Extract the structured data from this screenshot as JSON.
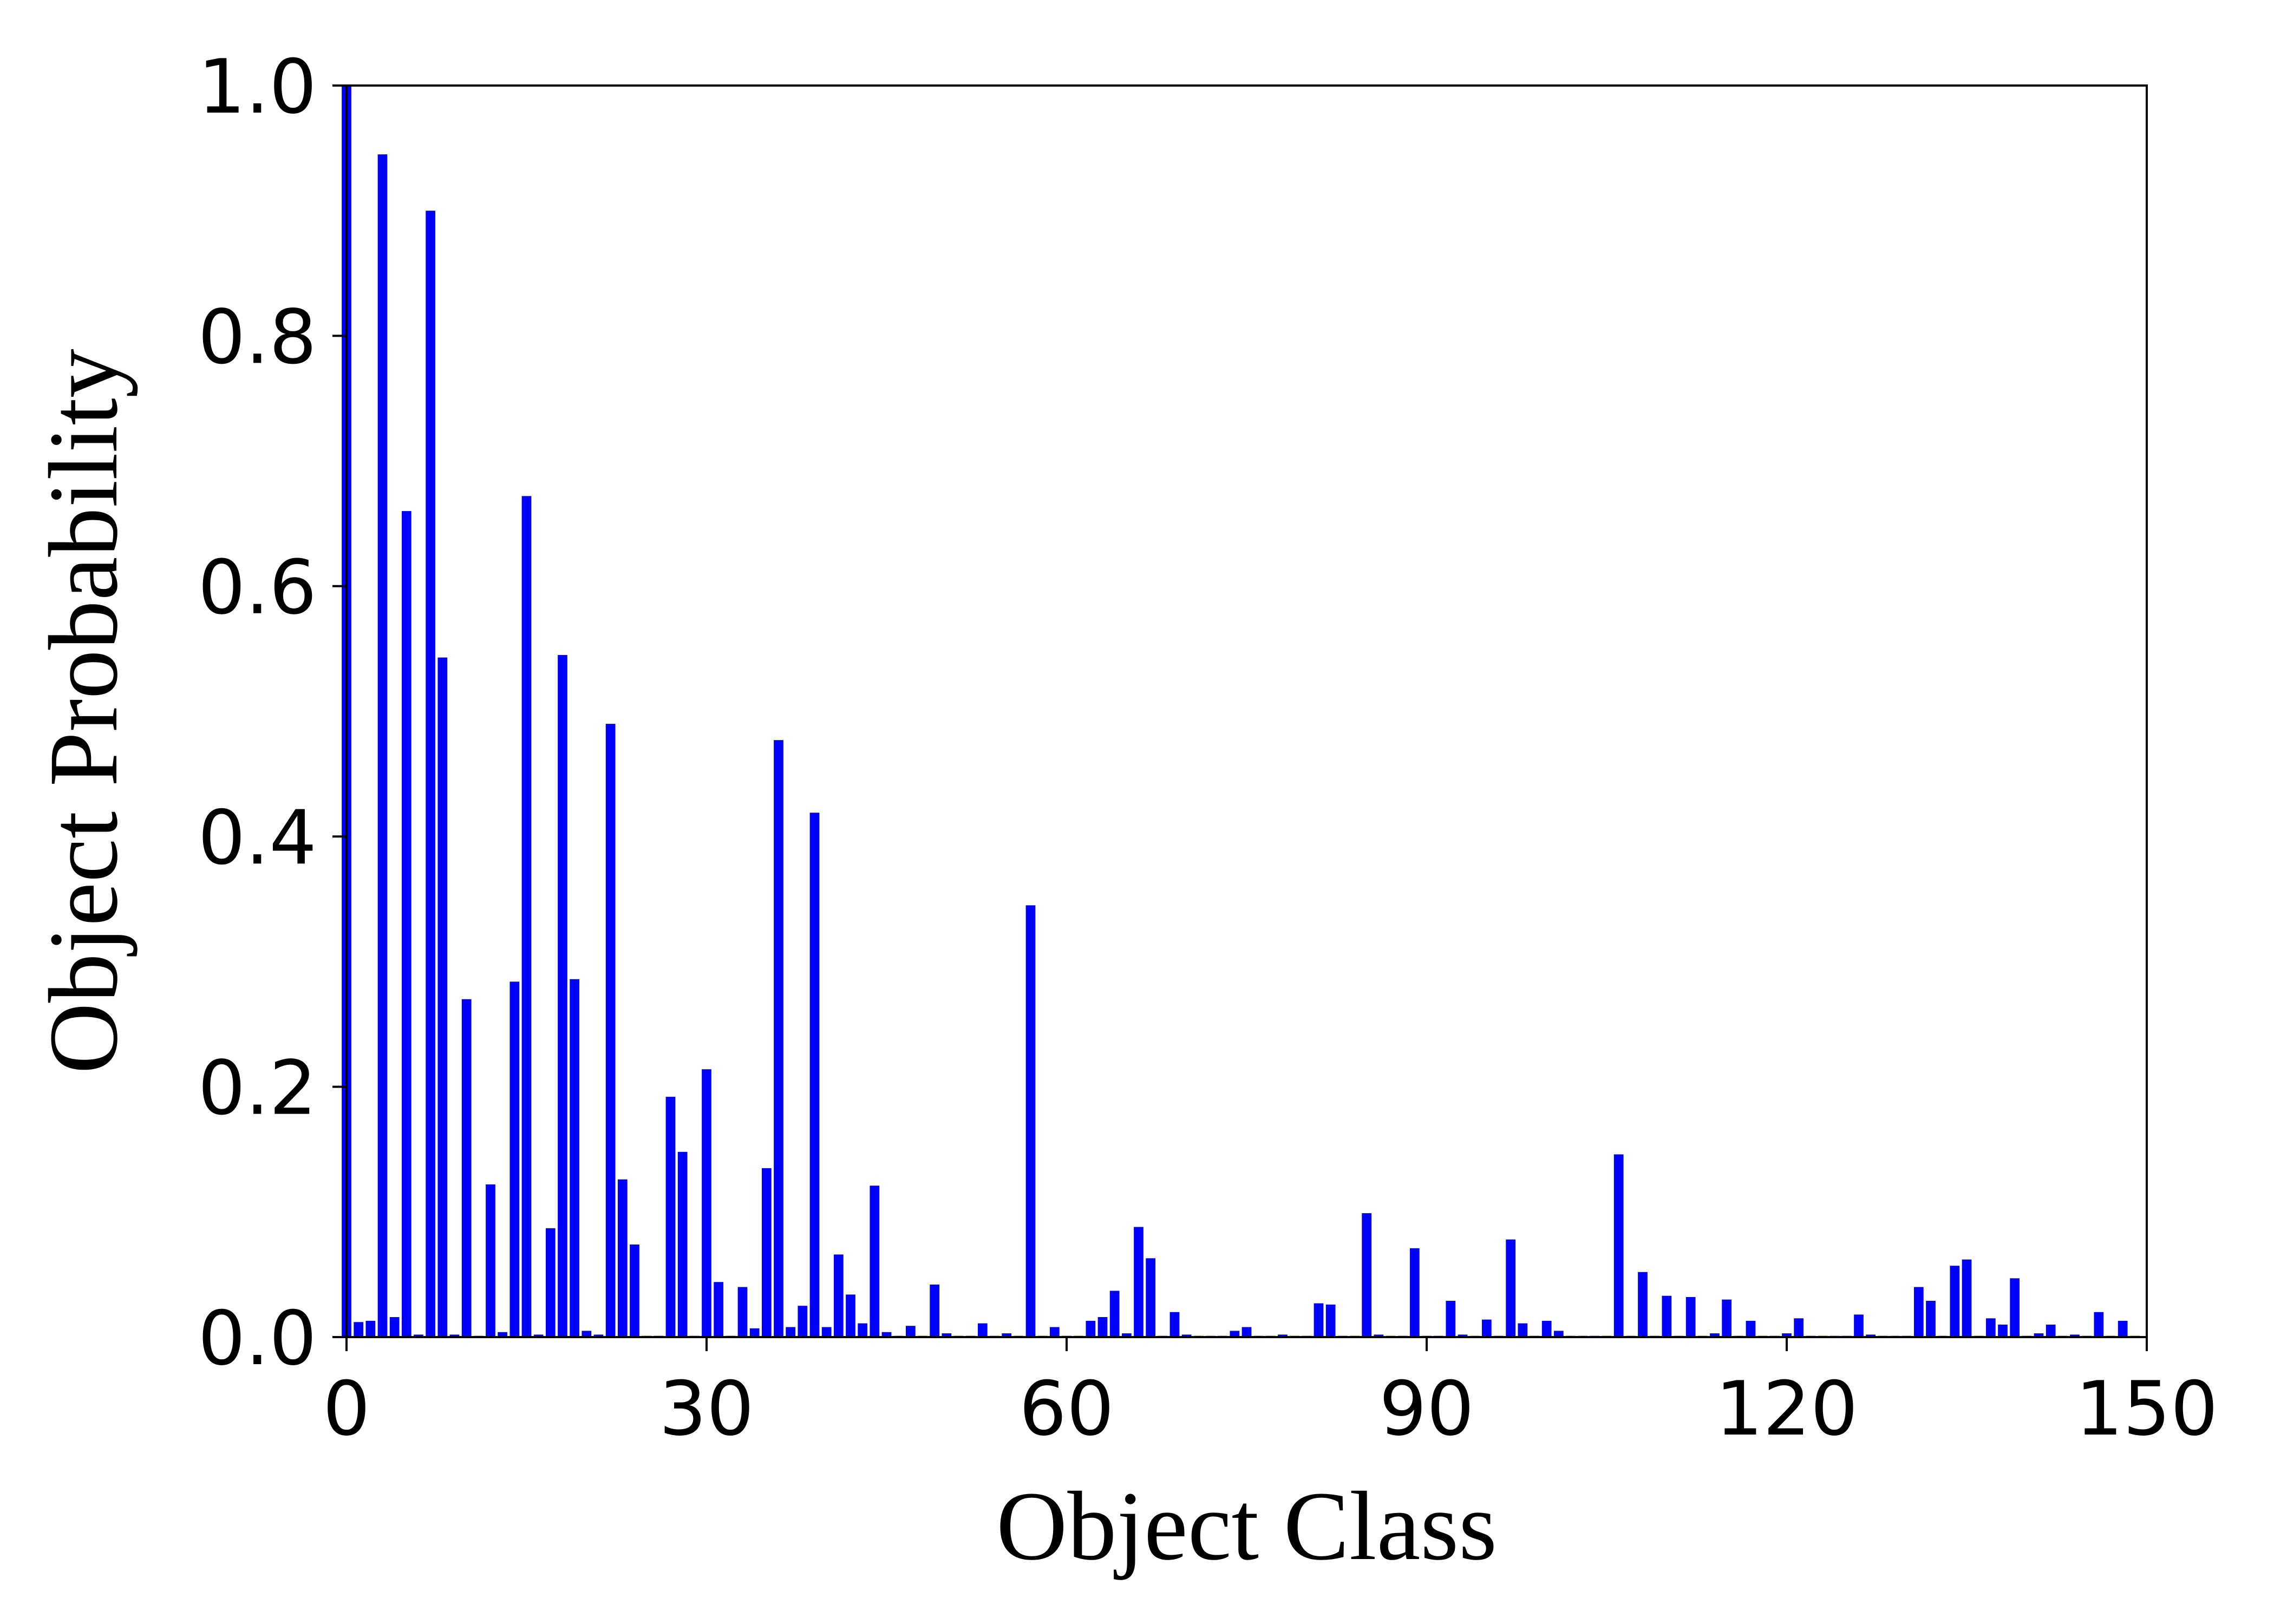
{
  "colors": {
    "bar": "#0000ff",
    "axis": "#000000",
    "background": "#ffffff"
  },
  "chart_data": {
    "type": "bar",
    "title": "",
    "xlabel": "Object Class",
    "ylabel": "Object Probability",
    "xlim": [
      0,
      150
    ],
    "ylim": [
      0,
      1.0
    ],
    "xticks": [
      0,
      30,
      60,
      90,
      120,
      150
    ],
    "xtick_labels": [
      "0",
      "30",
      "60",
      "90",
      "120",
      "150"
    ],
    "yticks": [
      0.0,
      0.2,
      0.4,
      0.6,
      0.8,
      1.0
    ],
    "ytick_labels": [
      "0.0",
      "0.2",
      "0.4",
      "0.6",
      "0.8",
      "1.0"
    ],
    "grid": false,
    "legend": "none",
    "x": [
      0,
      1,
      2,
      3,
      4,
      5,
      6,
      7,
      8,
      9,
      10,
      11,
      12,
      13,
      14,
      15,
      16,
      17,
      18,
      19,
      20,
      21,
      22,
      23,
      24,
      25,
      26,
      27,
      28,
      29,
      30,
      31,
      32,
      33,
      34,
      35,
      36,
      37,
      38,
      39,
      40,
      41,
      42,
      43,
      44,
      45,
      46,
      47,
      48,
      49,
      50,
      51,
      52,
      53,
      54,
      55,
      56,
      57,
      58,
      59,
      60,
      61,
      62,
      63,
      64,
      65,
      66,
      67,
      68,
      69,
      70,
      71,
      72,
      73,
      74,
      75,
      76,
      77,
      78,
      79,
      80,
      81,
      82,
      83,
      84,
      85,
      86,
      87,
      88,
      89,
      90,
      91,
      92,
      93,
      94,
      95,
      96,
      97,
      98,
      99,
      100,
      101,
      102,
      103,
      104,
      105,
      106,
      107,
      108,
      109,
      110,
      111,
      112,
      113,
      114,
      115,
      116,
      117,
      118,
      119,
      120,
      121,
      122,
      123,
      124,
      125,
      126,
      127,
      128,
      129,
      130,
      131,
      132,
      133,
      134,
      135,
      136,
      137,
      138,
      139,
      140,
      141,
      142,
      143,
      144,
      145,
      146,
      147,
      148,
      149
    ],
    "values": [
      1.0,
      0.012,
      0.013,
      0.945,
      0.016,
      0.66,
      0.002,
      0.9,
      0.543,
      0.002,
      0.27,
      0.001,
      0.122,
      0.004,
      0.284,
      0.672,
      0.002,
      0.087,
      0.545,
      0.286,
      0.005,
      0.002,
      0.49,
      0.126,
      0.074,
      0.001,
      0.001,
      0.192,
      0.148,
      0.001,
      0.214,
      0.044,
      0.001,
      0.04,
      0.007,
      0.135,
      0.477,
      0.008,
      0.025,
      0.419,
      0.008,
      0.066,
      0.034,
      0.011,
      0.121,
      0.004,
      0.001,
      0.009,
      0.001,
      0.042,
      0.003,
      0.001,
      0.001,
      0.011,
      0.001,
      0.003,
      0.001,
      0.345,
      0.001,
      0.008,
      0.001,
      0.001,
      0.013,
      0.016,
      0.037,
      0.003,
      0.088,
      0.063,
      0.001,
      0.02,
      0.002,
      0.001,
      0.001,
      0.001,
      0.005,
      0.008,
      0.001,
      0.001,
      0.002,
      0.001,
      0.001,
      0.027,
      0.026,
      0.001,
      0.001,
      0.099,
      0.002,
      0.001,
      0.001,
      0.071,
      0.001,
      0.001,
      0.029,
      0.002,
      0.001,
      0.014,
      0.001,
      0.078,
      0.011,
      0.001,
      0.013,
      0.005,
      0.001,
      0.001,
      0.001,
      0.001,
      0.146,
      0.001,
      0.052,
      0.001,
      0.033,
      0.001,
      0.032,
      0.001,
      0.003,
      0.03,
      0.001,
      0.013,
      0.001,
      0.001,
      0.003,
      0.015,
      0.001,
      0.001,
      0.001,
      0.001,
      0.018,
      0.002,
      0.001,
      0.001,
      0.001,
      0.04,
      0.029,
      0.001,
      0.057,
      0.062,
      0.001,
      0.015,
      0.01,
      0.047,
      0.001,
      0.003,
      0.01,
      0.001,
      0.002,
      0.001,
      0.02,
      0.001,
      0.013,
      0.001
    ]
  }
}
